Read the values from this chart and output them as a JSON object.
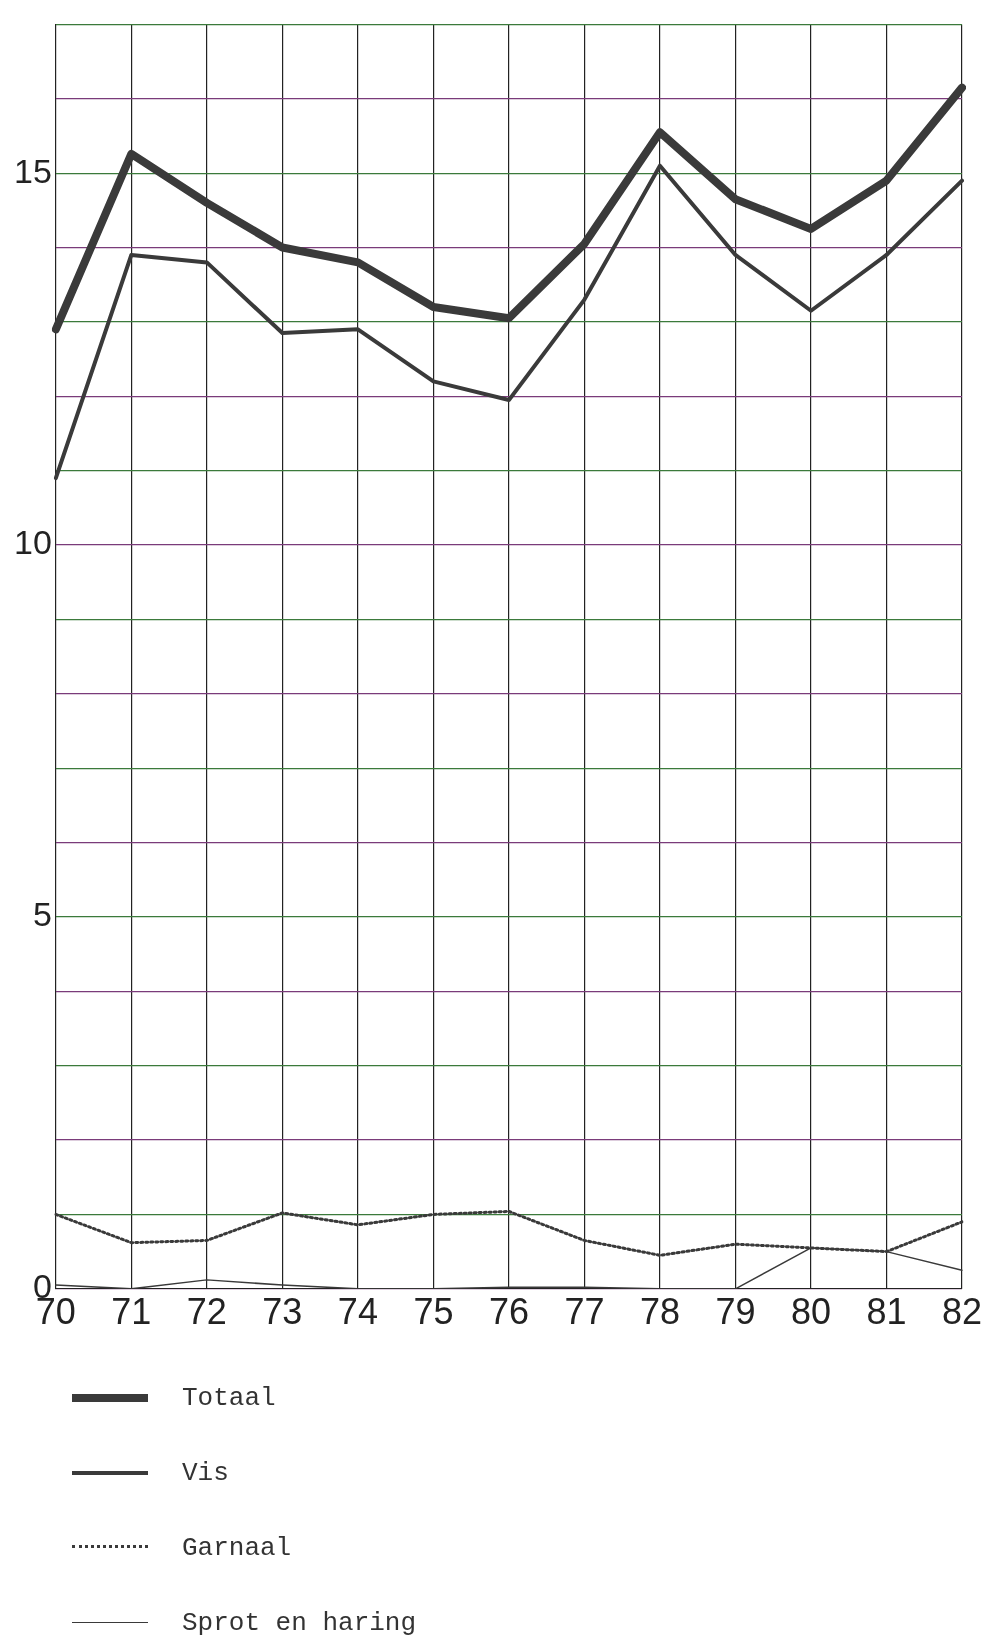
{
  "chart_data": {
    "type": "line",
    "categories": [
      "70",
      "71",
      "72",
      "73",
      "74",
      "75",
      "76",
      "77",
      "78",
      "79",
      "80",
      "81",
      "82"
    ],
    "series": [
      {
        "name": "Totaal",
        "color": "#3a3a3a",
        "values": [
          12.9,
          15.26,
          14.6,
          14.0,
          13.8,
          13.2,
          13.05,
          14.05,
          15.55,
          14.65,
          14.25,
          14.9,
          16.15
        ]
      },
      {
        "name": "Vis",
        "color": "#3a3a3a",
        "values": [
          10.9,
          13.9,
          13.8,
          12.85,
          12.9,
          12.2,
          11.95,
          13.3,
          15.1,
          13.9,
          13.15,
          13.9,
          14.9
        ]
      },
      {
        "name": "Garnaal",
        "color": "#3a3a3a",
        "line_style": "dotted",
        "values": [
          1.0,
          0.62,
          0.65,
          1.02,
          0.86,
          1.0,
          1.04,
          0.65,
          0.45,
          0.6,
          0.55,
          0.5,
          0.9
        ]
      },
      {
        "name": "Sprot en haring",
        "color": "#3a3a3a",
        "values": [
          0.05,
          0.0,
          0.12,
          0.05,
          0.0,
          0.0,
          0.02,
          0.02,
          0.0,
          0.0,
          0.55,
          0.5,
          0.25
        ]
      }
    ],
    "ylim": [
      0,
      17
    ],
    "yticks": [
      0,
      {
        "value": 1,
        "label": null
      },
      {
        "value": 2,
        "label": null
      },
      {
        "value": 3,
        "label": null
      },
      {
        "value": 4,
        "label": null
      },
      5,
      {
        "value": 6,
        "label": null
      },
      {
        "value": 7,
        "label": null
      },
      {
        "value": 8,
        "label": null
      },
      {
        "value": 9,
        "label": null
      },
      10,
      {
        "value": 11,
        "label": null
      },
      {
        "value": 12,
        "label": null
      },
      {
        "value": 13,
        "label": null
      },
      {
        "value": 14,
        "label": null
      },
      15,
      {
        "value": 16,
        "label": null
      },
      {
        "value": 17,
        "label": null
      }
    ],
    "grid": true,
    "legend": "bottom",
    "marker": "none",
    "line_style": "solid"
  }
}
